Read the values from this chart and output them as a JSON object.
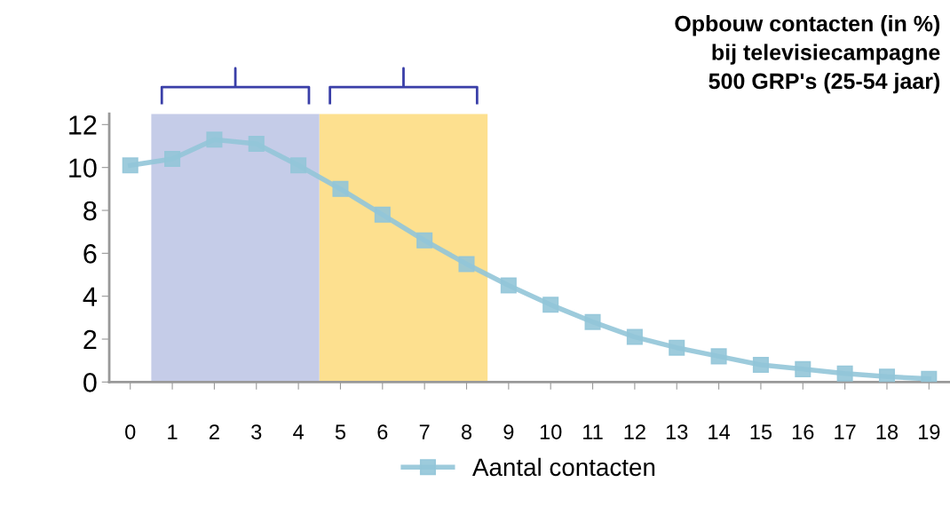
{
  "chart_data": {
    "type": "line",
    "title": "Opbouw contacten (in %)\nbij televisiecampagne\n500 GRP's (25-54 jaar)",
    "x": [
      0,
      1,
      2,
      3,
      4,
      5,
      6,
      7,
      8,
      9,
      10,
      11,
      12,
      13,
      14,
      15,
      16,
      17,
      18,
      19
    ],
    "series": [
      {
        "name": "Aantal contacten",
        "color": "#92c5d8",
        "values": [
          10.1,
          10.4,
          11.3,
          11.1,
          10.1,
          9.0,
          7.8,
          6.6,
          5.5,
          4.5,
          3.6,
          2.8,
          2.1,
          1.6,
          1.2,
          0.8,
          0.6,
          0.4,
          0.25,
          0.15
        ]
      }
    ],
    "xlim": [
      -0.5,
      19.5
    ],
    "xticks": [
      0,
      1,
      2,
      3,
      4,
      5,
      6,
      7,
      8,
      9,
      10,
      11,
      12,
      13,
      14,
      15,
      16,
      17,
      18,
      19
    ],
    "ylim": [
      0,
      12.5
    ],
    "yticks": [
      0,
      2,
      4,
      6,
      8,
      10,
      12
    ],
    "bands": [
      {
        "axis": "x",
        "from": 0.5,
        "to": 4.5,
        "color": "#c5cce8"
      },
      {
        "axis": "x",
        "from": 4.5,
        "to": 8.5,
        "color": "#fde08f"
      }
    ],
    "marker": "square",
    "line_style": "solid",
    "grid": false,
    "legend": "bottom"
  }
}
